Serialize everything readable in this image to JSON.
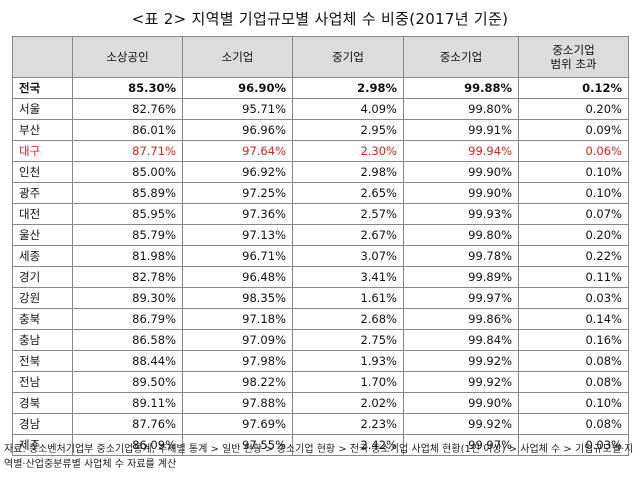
{
  "title": "<표 2> 지역별 기업규모별 사업체 수 비중(2017년 기준)",
  "table": {
    "headers": [
      "",
      "소상공인",
      "소기업",
      "중기업",
      "중소기업",
      "중소기업\n범위 초과"
    ],
    "rows": [
      {
        "region": "전국",
        "values": [
          "85.30%",
          "96.90%",
          "2.98%",
          "99.88%",
          "0.12%"
        ],
        "style": "bold"
      },
      {
        "region": "서울",
        "values": [
          "82.76%",
          "95.71%",
          "4.09%",
          "99.80%",
          "0.20%"
        ],
        "style": ""
      },
      {
        "region": "부산",
        "values": [
          "86.01%",
          "96.96%",
          "2.95%",
          "99.91%",
          "0.09%"
        ],
        "style": ""
      },
      {
        "region": "대구",
        "values": [
          "87.71%",
          "97.64%",
          "2.30%",
          "99.94%",
          "0.06%"
        ],
        "style": "red"
      },
      {
        "region": "인천",
        "values": [
          "85.00%",
          "96.92%",
          "2.98%",
          "99.90%",
          "0.10%"
        ],
        "style": ""
      },
      {
        "region": "광주",
        "values": [
          "85.89%",
          "97.25%",
          "2.65%",
          "99.90%",
          "0.10%"
        ],
        "style": ""
      },
      {
        "region": "대전",
        "values": [
          "85.95%",
          "97.36%",
          "2.57%",
          "99.93%",
          "0.07%"
        ],
        "style": ""
      },
      {
        "region": "울산",
        "values": [
          "85.79%",
          "97.13%",
          "2.67%",
          "99.80%",
          "0.20%"
        ],
        "style": ""
      },
      {
        "region": "세종",
        "values": [
          "81.98%",
          "96.71%",
          "3.07%",
          "99.78%",
          "0.22%"
        ],
        "style": ""
      },
      {
        "region": "경기",
        "values": [
          "82.78%",
          "96.48%",
          "3.41%",
          "99.89%",
          "0.11%"
        ],
        "style": ""
      },
      {
        "region": "강원",
        "values": [
          "89.30%",
          "98.35%",
          "1.61%",
          "99.97%",
          "0.03%"
        ],
        "style": ""
      },
      {
        "region": "충북",
        "values": [
          "86.79%",
          "97.18%",
          "2.68%",
          "99.86%",
          "0.14%"
        ],
        "style": ""
      },
      {
        "region": "충남",
        "values": [
          "86.58%",
          "97.09%",
          "2.75%",
          "99.84%",
          "0.16%"
        ],
        "style": ""
      },
      {
        "region": "전북",
        "values": [
          "88.44%",
          "97.98%",
          "1.93%",
          "99.92%",
          "0.08%"
        ],
        "style": ""
      },
      {
        "region": "전남",
        "values": [
          "89.50%",
          "98.22%",
          "1.70%",
          "99.92%",
          "0.08%"
        ],
        "style": ""
      },
      {
        "region": "경북",
        "values": [
          "89.11%",
          "97.88%",
          "2.02%",
          "99.90%",
          "0.10%"
        ],
        "style": ""
      },
      {
        "region": "경남",
        "values": [
          "87.76%",
          "97.69%",
          "2.23%",
          "99.92%",
          "0.08%"
        ],
        "style": ""
      },
      {
        "region": "제주",
        "values": [
          "86.09%",
          "97.55%",
          "2.42%",
          "99.97%",
          "0.03%"
        ],
        "style": ""
      }
    ]
  },
  "source": "자료: 중소벤처기업부 중소기업통계, 주제별 통계 > 일반 현황 > 중소기업 현황 > 전국 중소기업 사업체 현황(1인 이상) > 사업체 수 > 기업규모별·지역별·산업중분류별 사업체 수 자료를 계산",
  "colors": {
    "highlight": "#e0201b",
    "header_bg": "#dcdcdc",
    "border": "#888888"
  }
}
